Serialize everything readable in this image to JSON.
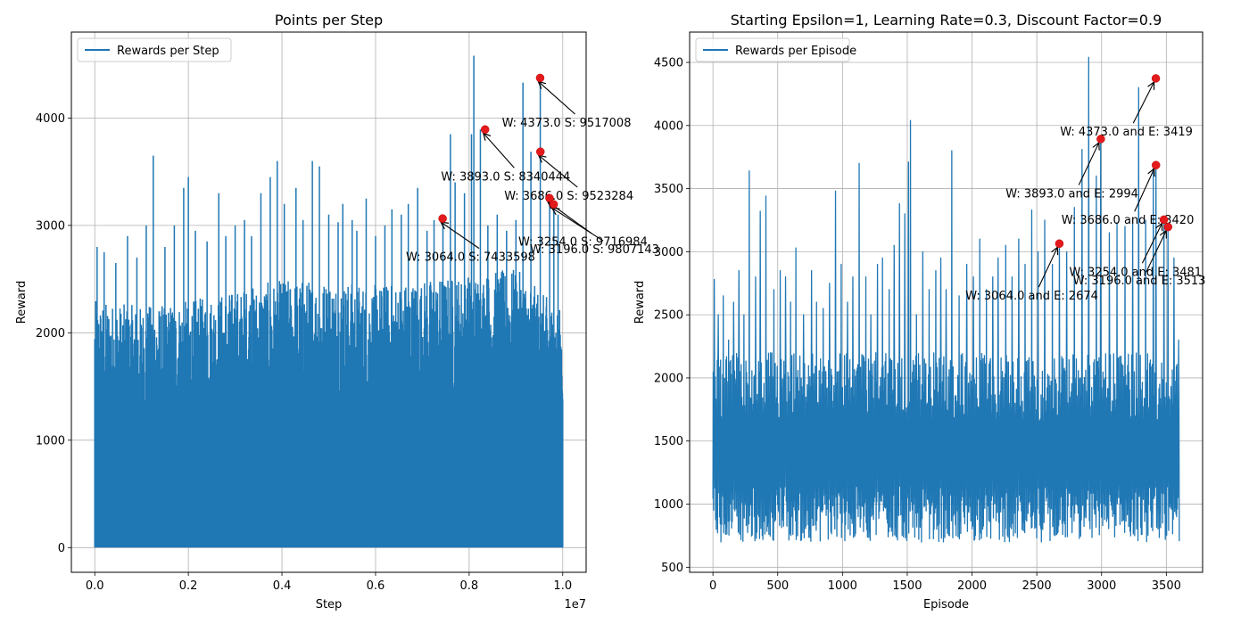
{
  "chart_data": [
    {
      "type": "line",
      "title": "Points per Step",
      "xlabel": "Step",
      "ylabel": "Reward",
      "x_offset_label": "1e7",
      "xlim": [
        -0.05,
        1.05
      ],
      "ylim": [
        -230,
        4800
      ],
      "xticks": [
        0.0,
        0.2,
        0.4,
        0.6,
        0.8,
        1.0
      ],
      "xtick_labels": [
        "0.0",
        "0.2",
        "0.4",
        "0.6",
        "0.8",
        "1.0"
      ],
      "yticks": [
        0,
        1000,
        2000,
        3000,
        4000
      ],
      "grid": true,
      "legend": {
        "position": "upper-left",
        "entries": [
          "Rewards per Step"
        ]
      },
      "series": [
        {
          "name": "Rewards per Step",
          "color": "#1f77b4",
          "x_start": 0.0,
          "x_end": 1.0,
          "fill_min": 0,
          "dense_band": [
            {
              "x": 0.0,
              "y": 2300
            },
            {
              "x": 0.1,
              "y": 2250
            },
            {
              "x": 0.2,
              "y": 2300
            },
            {
              "x": 0.3,
              "y": 2400
            },
            {
              "x": 0.4,
              "y": 2500
            },
            {
              "x": 0.5,
              "y": 2500
            },
            {
              "x": 0.6,
              "y": 2450
            },
            {
              "x": 0.7,
              "y": 2500
            },
            {
              "x": 0.8,
              "y": 2550
            },
            {
              "x": 0.9,
              "y": 2600
            },
            {
              "x": 1.0,
              "y": 2200
            }
          ],
          "spikes": [
            [
              0.005,
              2800
            ],
            [
              0.02,
              2750
            ],
            [
              0.045,
              2650
            ],
            [
              0.07,
              2900
            ],
            [
              0.09,
              2700
            ],
            [
              0.11,
              3000
            ],
            [
              0.125,
              3650
            ],
            [
              0.15,
              2800
            ],
            [
              0.17,
              3000
            ],
            [
              0.19,
              3350
            ],
            [
              0.2,
              3450
            ],
            [
              0.215,
              2950
            ],
            [
              0.24,
              2850
            ],
            [
              0.265,
              3300
            ],
            [
              0.28,
              2900
            ],
            [
              0.3,
              3000
            ],
            [
              0.32,
              3050
            ],
            [
              0.335,
              2900
            ],
            [
              0.355,
              3300
            ],
            [
              0.375,
              3450
            ],
            [
              0.39,
              3600
            ],
            [
              0.405,
              3200
            ],
            [
              0.43,
              3350
            ],
            [
              0.445,
              3050
            ],
            [
              0.465,
              3600
            ],
            [
              0.48,
              3550
            ],
            [
              0.5,
              3100
            ],
            [
              0.52,
              3030
            ],
            [
              0.53,
              3200
            ],
            [
              0.55,
              3050
            ],
            [
              0.56,
              2950
            ],
            [
              0.58,
              3250
            ],
            [
              0.6,
              2900
            ],
            [
              0.62,
              3000
            ],
            [
              0.635,
              3150
            ],
            [
              0.655,
              3100
            ],
            [
              0.67,
              3200
            ],
            [
              0.69,
              3350
            ],
            [
              0.71,
              2950
            ],
            [
              0.725,
              3050
            ],
            [
              0.744,
              3064
            ],
            [
              0.76,
              3850
            ],
            [
              0.77,
              3400
            ],
            [
              0.79,
              3300
            ],
            [
              0.805,
              3850
            ],
            [
              0.81,
              4580
            ],
            [
              0.824,
              3893
            ],
            [
              0.84,
              3000
            ],
            [
              0.86,
              3100
            ],
            [
              0.88,
              2950
            ],
            [
              0.9,
              3050
            ],
            [
              0.915,
              4330
            ],
            [
              0.932,
              3686
            ],
            [
              0.952,
              4373
            ],
            [
              0.972,
              3254
            ],
            [
              0.981,
              3196
            ],
            [
              0.99,
              3100
            ]
          ]
        }
      ],
      "annotations": [
        {
          "text": "W: 3064.0 S: 7433598",
          "point": [
            0.7433598,
            3064
          ],
          "text_at": [
            0.665,
            2670
          ]
        },
        {
          "text": "W: 3893.0 S: 8340444",
          "point": [
            0.8340444,
            3893
          ],
          "text_at": [
            0.74,
            3420
          ]
        },
        {
          "text": "W: 4373.0 S: 9517008",
          "point": [
            0.9517008,
            4373
          ],
          "text_at": [
            0.87,
            3920
          ]
        },
        {
          "text": "W: 3686.0 S: 9523284",
          "point": [
            0.9523284,
            3686
          ],
          "text_at": [
            0.875,
            3240
          ]
        },
        {
          "text": "W: 3254.0 S: 9716984",
          "point": [
            0.9716984,
            3254
          ],
          "text_at": [
            0.905,
            2810
          ]
        },
        {
          "text": "W: 3196.0 S: 9807143",
          "point": [
            0.9807143,
            3196
          ],
          "text_at": [
            0.93,
            2740
          ]
        }
      ]
    },
    {
      "type": "line",
      "title": "Starting Epsilon=1, Learning Rate=0.3, Discount Factor=0.9",
      "xlabel": "Episode",
      "ylabel": "Reward",
      "xlim": [
        -180,
        3780
      ],
      "ylim": [
        460,
        4740
      ],
      "xticks": [
        0,
        500,
        1000,
        1500,
        2000,
        2500,
        3000,
        3500
      ],
      "yticks": [
        500,
        1000,
        1500,
        2000,
        2500,
        3000,
        3500,
        4000,
        4500
      ],
      "grid": true,
      "legend": {
        "position": "upper-left",
        "entries": [
          "Rewards per Episode"
        ]
      },
      "series": [
        {
          "name": "Rewards per Episode",
          "color": "#1f77b4",
          "x_start": 0,
          "x_end": 3600,
          "band_low": 700,
          "band_high": 2200,
          "spikes": [
            [
              10,
              2780
            ],
            [
              40,
              2500
            ],
            [
              80,
              2650
            ],
            [
              120,
              2300
            ],
            [
              160,
              2600
            ],
            [
              200,
              2850
            ],
            [
              240,
              2500
            ],
            [
              280,
              3640
            ],
            [
              330,
              2800
            ],
            [
              365,
              3320
            ],
            [
              410,
              3440
            ],
            [
              470,
              2700
            ],
            [
              520,
              2850
            ],
            [
              560,
              2800
            ],
            [
              600,
              2600
            ],
            [
              640,
              3030
            ],
            [
              700,
              2500
            ],
            [
              760,
              2850
            ],
            [
              800,
              2600
            ],
            [
              850,
              2550
            ],
            [
              900,
              2750
            ],
            [
              945,
              3480
            ],
            [
              990,
              2900
            ],
            [
              1040,
              2600
            ],
            [
              1080,
              2800
            ],
            [
              1130,
              3700
            ],
            [
              1180,
              2800
            ],
            [
              1220,
              2500
            ],
            [
              1270,
              2900
            ],
            [
              1310,
              2950
            ],
            [
              1360,
              2700
            ],
            [
              1400,
              3050
            ],
            [
              1440,
              3380
            ],
            [
              1480,
              3300
            ],
            [
              1510,
              3710
            ],
            [
              1525,
              4040
            ],
            [
              1570,
              2500
            ],
            [
              1620,
              3000
            ],
            [
              1670,
              2700
            ],
            [
              1720,
              2850
            ],
            [
              1760,
              2950
            ],
            [
              1800,
              2700
            ],
            [
              1845,
              3800
            ],
            [
              1900,
              2650
            ],
            [
              1960,
              2900
            ],
            [
              2010,
              2800
            ],
            [
              2060,
              3100
            ],
            [
              2110,
              2700
            ],
            [
              2160,
              2800
            ],
            [
              2200,
              2950
            ],
            [
              2260,
              3050
            ],
            [
              2310,
              2800
            ],
            [
              2360,
              3100
            ],
            [
              2410,
              2900
            ],
            [
              2460,
              3330
            ],
            [
              2510,
              3000
            ],
            [
              2560,
              3250
            ],
            [
              2620,
              2900
            ],
            [
              2674,
              3064
            ],
            [
              2730,
              3000
            ],
            [
              2790,
              3350
            ],
            [
              2850,
              3810
            ],
            [
              2900,
              4540
            ],
            [
              2960,
              3600
            ],
            [
              2994,
              3893
            ],
            [
              3060,
              3150
            ],
            [
              3120,
              3230
            ],
            [
              3180,
              3200
            ],
            [
              3240,
              3250
            ],
            [
              3285,
              4300
            ],
            [
              3340,
              3250
            ],
            [
              3400,
              3660
            ],
            [
              3419,
              4373
            ],
            [
              3420,
              3686
            ],
            [
              3481,
              3254
            ],
            [
              3513,
              3196
            ],
            [
              3560,
              2950
            ],
            [
              3595,
              2300
            ]
          ]
        }
      ],
      "annotations": [
        {
          "text": "W: 3064.0 and E: 2674",
          "point": [
            2674,
            3064
          ],
          "text_at": [
            1950,
            2620
          ]
        },
        {
          "text": "W: 3893.0 and E: 2994",
          "point": [
            2994,
            3893
          ],
          "text_at": [
            2260,
            3430
          ]
        },
        {
          "text": "W: 4373.0 and E: 3419",
          "point": [
            3419,
            4373
          ],
          "text_at": [
            2680,
            3920
          ]
        },
        {
          "text": "W: 3686.0 and E: 3420",
          "point": [
            3420,
            3686
          ],
          "text_at": [
            2690,
            3220
          ]
        },
        {
          "text": "W: 3254.0 and E: 3481",
          "point": [
            3481,
            3254
          ],
          "text_at": [
            2750,
            2810
          ]
        },
        {
          "text": "W: 3196.0 and E: 3513",
          "point": [
            3513,
            3196
          ],
          "text_at": [
            2780,
            2740
          ]
        }
      ]
    }
  ]
}
